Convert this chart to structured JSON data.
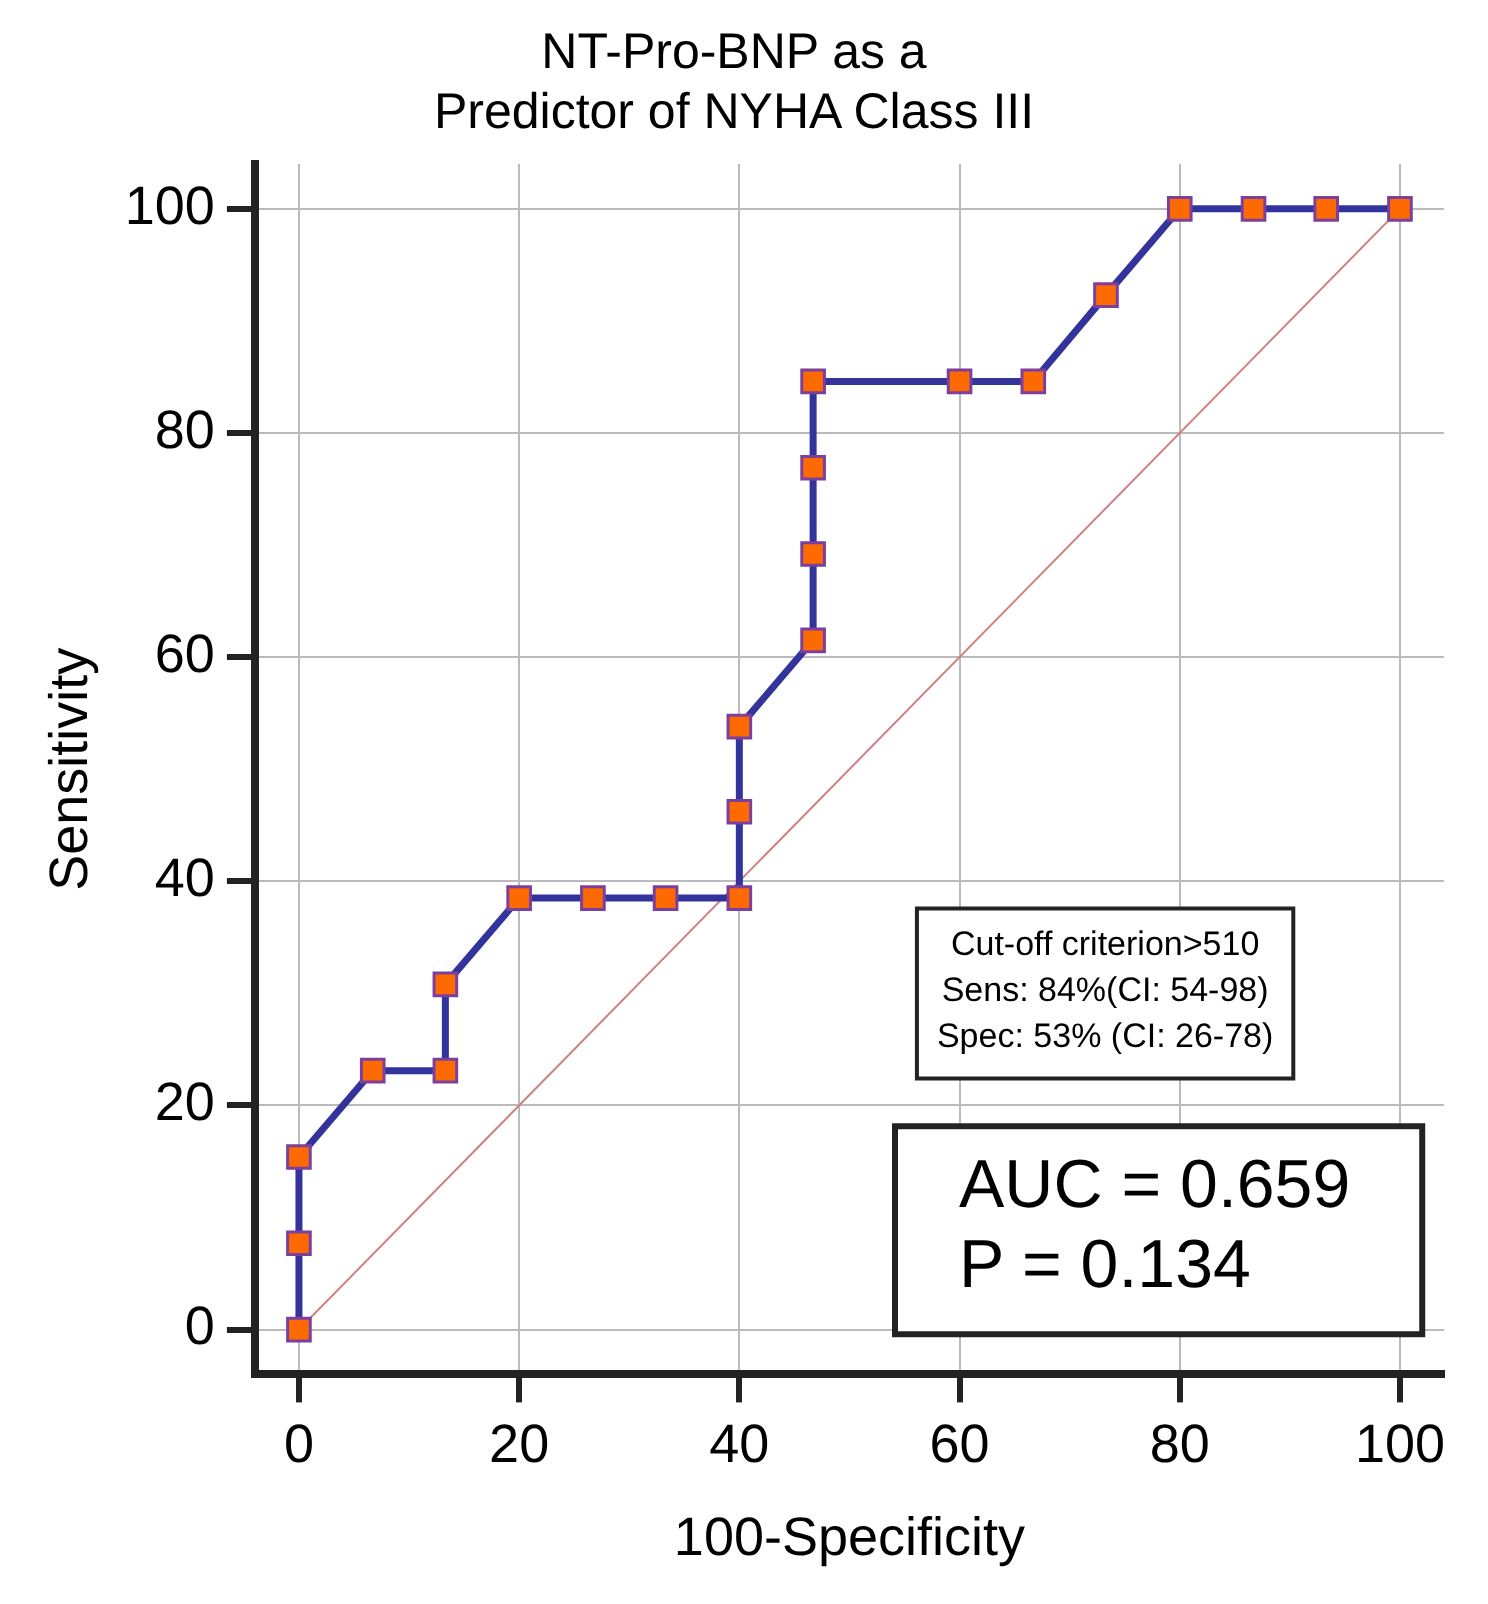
{
  "chart_data": {
    "type": "line",
    "title": "NT-Pro-BNP as a\nPredictor of NYHA Class III",
    "xlabel": "100-Specificity",
    "ylabel": "Sensitivity",
    "xlim": [
      -4,
      104
    ],
    "ylim": [
      -4,
      104
    ],
    "xticks": [
      0,
      20,
      40,
      60,
      80,
      100
    ],
    "yticks": [
      0,
      20,
      40,
      60,
      80,
      100
    ],
    "grid": true,
    "legend": false,
    "marker": "square",
    "line_style": "solid",
    "series": [
      {
        "color": "#33339c",
        "x": [
          0,
          0,
          0,
          6.7,
          13.3,
          13.3,
          20,
          26.7,
          33.3,
          40,
          40,
          40,
          46.7,
          46.7,
          46.7,
          46.7,
          60,
          66.7,
          73.3,
          80,
          86.7,
          93.3,
          100
        ],
        "values": [
          0,
          7.7,
          15.4,
          23.1,
          23.1,
          30.8,
          38.5,
          38.5,
          38.5,
          38.5,
          46.2,
          53.8,
          61.5,
          69.2,
          76.9,
          84.6,
          84.6,
          84.6,
          92.3,
          100,
          100,
          100,
          100
        ]
      },
      {
        "color": "#d08080",
        "marker": "none",
        "x": [
          0,
          100
        ],
        "values": [
          0,
          100
        ]
      }
    ],
    "annotations": [
      "Cut-off criterion>510\nSens: 84%(CI: 54-98)\nSpec: 53% (CI: 26-78)",
      "AUC = 0.659\nP = 0.134"
    ]
  }
}
